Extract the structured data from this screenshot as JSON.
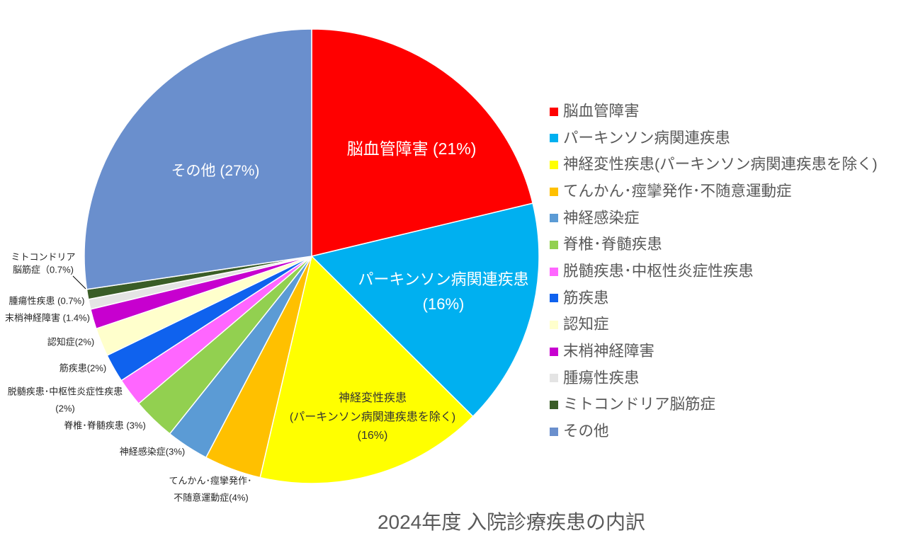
{
  "chart_data": {
    "type": "pie",
    "title": "2024年度 入院診療疾患の内訳",
    "legend_position": "right",
    "categories": [
      "脳血管障害",
      "パーキンソン病関連疾患",
      "神経変性疾患(パーキンソン病関連疾患を除く)",
      "てんかん･痙攣発作･不随意運動症",
      "神経感染症",
      "脊椎･脊髄疾患",
      "脱髄疾患･中枢性炎症性疾患",
      "筋疾患",
      "認知症",
      "末梢神経障害",
      "腫瘍性疾患",
      "ミトコンドリア脳筋症",
      "その他"
    ],
    "values": [
      21,
      16,
      16,
      4,
      3,
      3,
      2,
      2,
      2,
      1.4,
      0.7,
      0.7,
      27
    ],
    "colors": [
      "#FF0000",
      "#00B0F0",
      "#FFFF00",
      "#FFC000",
      "#5B9BD5",
      "#92D050",
      "#FF66FF",
      "#0F62EE",
      "#FFFFCC",
      "#C700CF",
      "#E4E4E4",
      "#3A5D27",
      "#6A8FCD"
    ],
    "data_labels": [
      [
        "脳血管障害 (21%)"
      ],
      [
        "パーキンソン病関連疾患",
        "(16%)"
      ],
      [
        "神経変性疾患",
        "(パーキンソン病関連疾患を除く)",
        "(16%)"
      ],
      [
        "てんかん･痙攣発作･",
        "不随意運動症(4%)"
      ],
      [
        "神経感染症(3%)"
      ],
      [
        "脊椎･脊髄疾患 (3%)"
      ],
      [
        "脱髄疾患･中枢性炎症性疾患",
        "(2%)"
      ],
      [
        "筋疾患(2%)"
      ],
      [
        "認知症(2%)"
      ],
      [
        "末梢神経障害 (1.4%)"
      ],
      [
        "腫瘍性疾患 (0.7%)"
      ],
      [
        "ミトコンドリア",
        "脳筋症（0.7%)"
      ],
      [
        "その他 (27%)"
      ]
    ]
  }
}
